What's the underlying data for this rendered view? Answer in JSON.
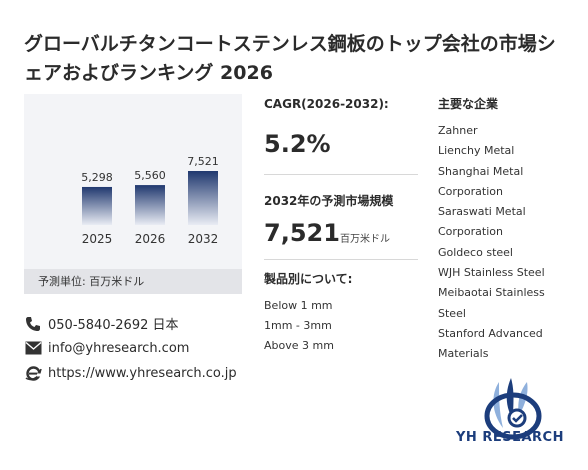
{
  "title": "グローバルチタンコートステンレス鋼板のトップ会社の市場シェアおよびランキング 2026",
  "chart_data": {
    "type": "bar",
    "categories": [
      "2025",
      "2026",
      "2032"
    ],
    "values": [
      5298,
      5560,
      7521
    ],
    "value_labels": [
      "5,298",
      "5,560",
      "7,521"
    ],
    "colors": {
      "bar_top": "#20386f",
      "bar_bottom": "#e9ecf4"
    }
  },
  "chart_footer": "予測単位: 百万米ドル",
  "cagr": {
    "label": "CAGR(2026-2032):",
    "value": "5.2%"
  },
  "forecast": {
    "label": "2032年の予測市場規模",
    "value": "7,521",
    "unit": "百万米ドル"
  },
  "segments": {
    "label": "製品別について:",
    "items": [
      "Below 1 mm",
      "1mm - 3mm",
      "Above 3 mm"
    ]
  },
  "companies": {
    "title": "主要な企業",
    "items": [
      "Zahner",
      "Lienchy Metal",
      "Shanghai Metal",
      "Corporation",
      "Saraswati Metal",
      "Corporation",
      "Goldeco steel",
      "WJH Stainless Steel",
      "Meibaotai Stainless",
      "Steel",
      "Stanford Advanced",
      "Materials"
    ]
  },
  "contact": {
    "phone": "050-5840-2692 日本",
    "email": "info@yhresearch.com",
    "website": "https://www.yhresearch.co.jp"
  },
  "logo": {
    "text": "YH RESEARCH",
    "colors": {
      "dark": "#1c3d7c",
      "light": "#8fb0dc"
    }
  }
}
